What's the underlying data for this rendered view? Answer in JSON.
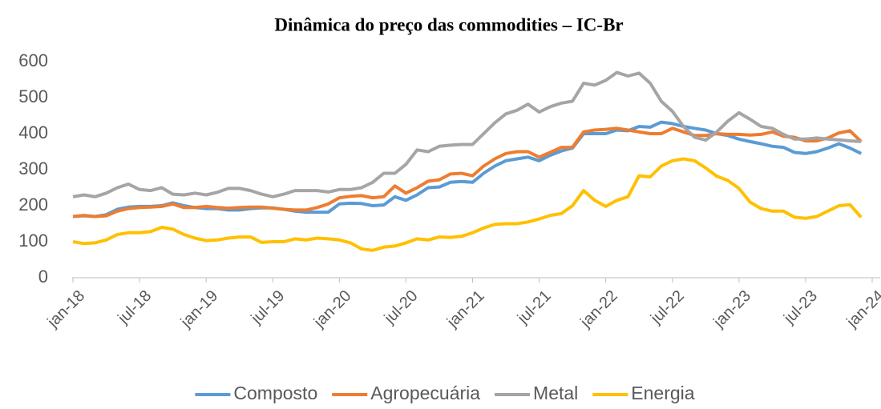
{
  "chart_data": {
    "type": "line",
    "title": "Dinâmica do preço das commodities – IC-Br",
    "categories": [
      "jan-18",
      null,
      null,
      null,
      null,
      null,
      "jul-18",
      null,
      null,
      null,
      null,
      null,
      "jan-19",
      null,
      null,
      null,
      null,
      null,
      "jul-19",
      null,
      null,
      null,
      null,
      null,
      "jan-20",
      null,
      null,
      null,
      null,
      null,
      "jul-20",
      null,
      null,
      null,
      null,
      null,
      "jan-21",
      null,
      null,
      null,
      null,
      null,
      "jul-21",
      null,
      null,
      null,
      null,
      null,
      "jan-22",
      null,
      null,
      null,
      null,
      null,
      "jul-22",
      null,
      null,
      null,
      null,
      null,
      "jan-23",
      null,
      null,
      null,
      null,
      null,
      "jul-23",
      null,
      null,
      null,
      null,
      null,
      "jan-24"
    ],
    "series": [
      {
        "name": "Composto",
        "color": "#5b9bd5",
        "values": [
          170,
          172,
          170,
          175,
          190,
          196,
          198,
          198,
          200,
          208,
          200,
          195,
          192,
          192,
          188,
          188,
          192,
          194,
          194,
          190,
          185,
          182,
          182,
          182,
          205,
          207,
          206,
          200,
          202,
          225,
          215,
          230,
          250,
          252,
          265,
          267,
          265,
          290,
          310,
          325,
          330,
          335,
          325,
          340,
          352,
          360,
          400,
          400,
          400,
          410,
          408,
          420,
          418,
          432,
          428,
          420,
          415,
          410,
          400,
          395,
          385,
          378,
          372,
          365,
          362,
          348,
          345,
          350,
          360,
          372,
          360,
          345,
          null
        ]
      },
      {
        "name": "Agropecuária",
        "color": "#ed7d31",
        "values": [
          170,
          173,
          170,
          172,
          185,
          192,
          195,
          196,
          198,
          205,
          195,
          195,
          198,
          195,
          193,
          195,
          196,
          196,
          193,
          190,
          188,
          188,
          195,
          205,
          222,
          226,
          228,
          222,
          225,
          255,
          235,
          250,
          268,
          272,
          288,
          290,
          283,
          310,
          330,
          345,
          350,
          350,
          335,
          348,
          362,
          362,
          405,
          410,
          412,
          415,
          410,
          405,
          400,
          400,
          415,
          405,
          395,
          395,
          400,
          398,
          398,
          396,
          398,
          405,
          393,
          390,
          380,
          380,
          388,
          402,
          408,
          378,
          null
        ]
      },
      {
        "name": "Metal",
        "color": "#a5a5a5",
        "values": [
          225,
          230,
          225,
          235,
          250,
          260,
          245,
          242,
          250,
          232,
          230,
          235,
          230,
          237,
          248,
          248,
          242,
          232,
          225,
          232,
          242,
          242,
          242,
          238,
          245,
          245,
          250,
          265,
          290,
          290,
          315,
          355,
          350,
          365,
          368,
          370,
          370,
          400,
          430,
          455,
          465,
          482,
          460,
          475,
          485,
          490,
          540,
          535,
          548,
          570,
          560,
          568,
          540,
          490,
          462,
          420,
          390,
          382,
          405,
          435,
          458,
          440,
          420,
          415,
          398,
          385,
          385,
          388,
          385,
          383,
          380,
          378,
          null
        ]
      },
      {
        "name": "Energia",
        "color": "#ffc000",
        "values": [
          100,
          95,
          97,
          105,
          120,
          125,
          125,
          128,
          140,
          135,
          120,
          110,
          103,
          105,
          110,
          113,
          113,
          98,
          100,
          100,
          108,
          105,
          110,
          108,
          105,
          97,
          80,
          76,
          85,
          88,
          97,
          108,
          105,
          113,
          112,
          115,
          125,
          138,
          148,
          150,
          150,
          155,
          163,
          173,
          178,
          200,
          242,
          215,
          198,
          215,
          225,
          283,
          280,
          310,
          325,
          330,
          325,
          305,
          282,
          270,
          248,
          210,
          192,
          185,
          185,
          168,
          165,
          170,
          185,
          200,
          203,
          168,
          null
        ]
      }
    ],
    "ylim": [
      0,
      600
    ],
    "yticks": [
      0,
      100,
      200,
      300,
      400,
      500,
      600
    ],
    "grid": false,
    "legend": "bottom"
  }
}
